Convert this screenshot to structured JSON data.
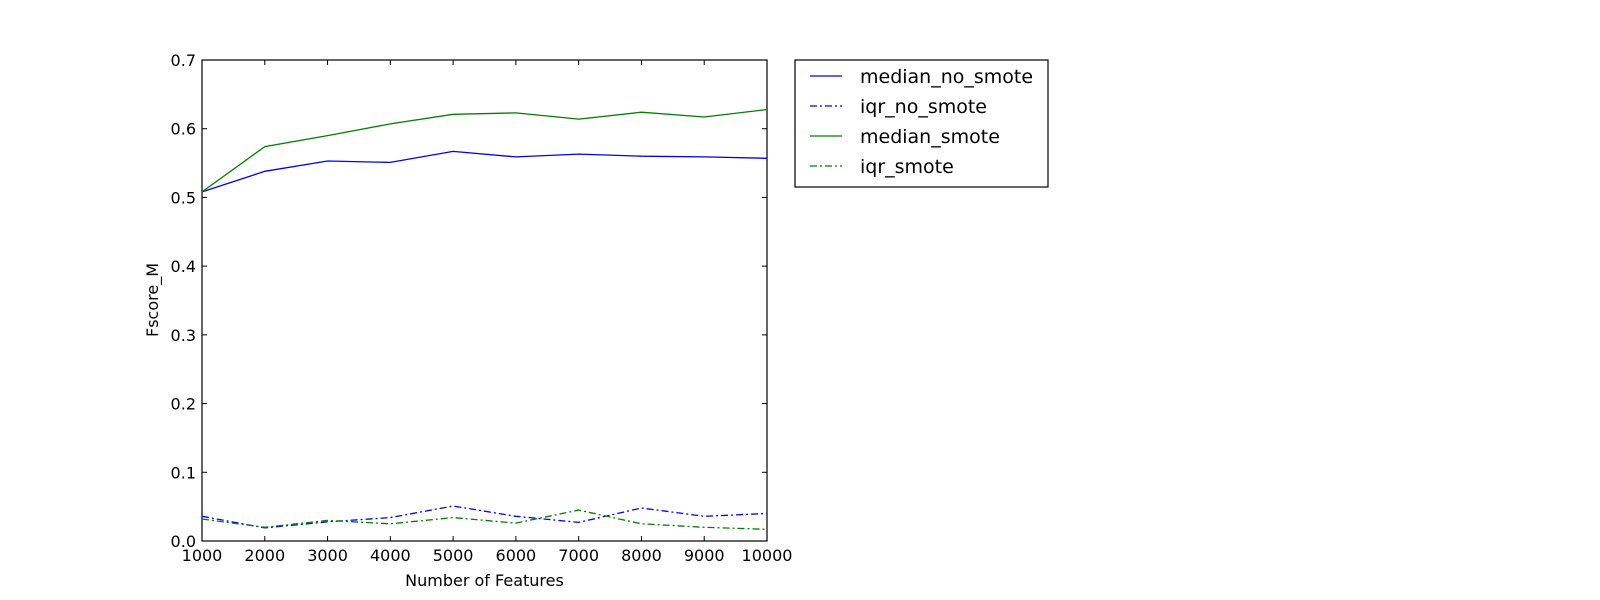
{
  "chart_data": {
    "type": "line",
    "xlabel": "Number of Features",
    "ylabel": "Fscore_M",
    "xlim": [
      1000,
      10000
    ],
    "ylim": [
      0.0,
      0.7
    ],
    "x_ticks": [
      "1000",
      "2000",
      "3000",
      "4000",
      "5000",
      "6000",
      "7000",
      "8000",
      "9000",
      "10000"
    ],
    "y_ticks": [
      "0.0",
      "0.1",
      "0.2",
      "0.3",
      "0.4",
      "0.5",
      "0.6",
      "0.7"
    ],
    "grid": false,
    "legend_position": "outside-right-top",
    "x": [
      1000,
      2000,
      3000,
      4000,
      5000,
      6000,
      7000,
      8000,
      9000,
      10000
    ],
    "series": [
      {
        "name": "median_no_smote",
        "color": "#0000ff",
        "style": "solid",
        "values": [
          0.508,
          0.538,
          0.553,
          0.551,
          0.567,
          0.559,
          0.563,
          0.56,
          0.559,
          0.557
        ]
      },
      {
        "name": "iqr_no_smote",
        "color": "#0000ff",
        "style": "dashdot",
        "values": [
          0.036,
          0.019,
          0.028,
          0.034,
          0.051,
          0.036,
          0.027,
          0.048,
          0.036,
          0.04
        ]
      },
      {
        "name": "median_smote",
        "color": "#008000",
        "style": "solid",
        "values": [
          0.508,
          0.574,
          0.59,
          0.607,
          0.621,
          0.623,
          0.614,
          0.624,
          0.617,
          0.628
        ]
      },
      {
        "name": "iqr_smote",
        "color": "#008000",
        "style": "dashdot",
        "values": [
          0.032,
          0.02,
          0.03,
          0.025,
          0.034,
          0.026,
          0.045,
          0.025,
          0.02,
          0.017
        ]
      }
    ]
  }
}
